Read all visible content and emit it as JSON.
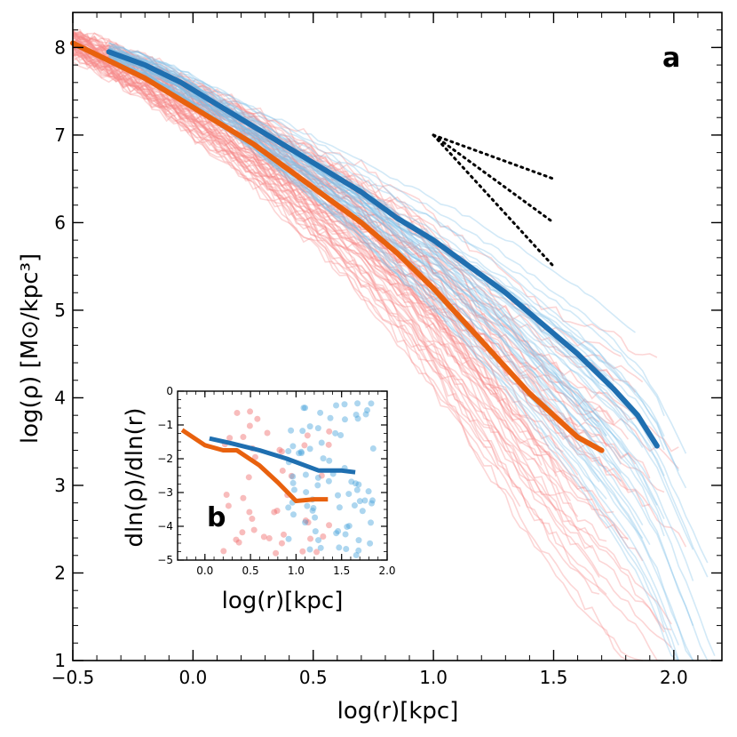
{
  "chart_data": [
    {
      "panel": "a",
      "type": "line",
      "title": "",
      "xlabel": "log(r)[kpc]",
      "ylabel": "log(ρ) [M⊙/kpc³]",
      "xlim": [
        -0.5,
        2.2
      ],
      "ylim": [
        1,
        8.4
      ],
      "xticks": [
        -0.5,
        0.0,
        0.5,
        1.0,
        1.5,
        2.0
      ],
      "xtick_labels": [
        "−0.5",
        "0.0",
        "0.5",
        "1.0",
        "1.5",
        "2.0"
      ],
      "yticks": [
        1,
        2,
        3,
        4,
        5,
        6,
        7,
        8
      ],
      "ytick_labels": [
        "1",
        "2",
        "3",
        "4",
        "5",
        "6",
        "7",
        "8"
      ],
      "series": [
        {
          "name": "blue-median",
          "color": "#1f6fb0",
          "x": [
            -0.35,
            -0.2,
            -0.05,
            0.1,
            0.25,
            0.4,
            0.55,
            0.7,
            0.85,
            1.0,
            1.15,
            1.3,
            1.45,
            1.6,
            1.75,
            1.85,
            1.93
          ],
          "y": [
            7.95,
            7.8,
            7.6,
            7.35,
            7.1,
            6.85,
            6.6,
            6.35,
            6.05,
            5.8,
            5.5,
            5.2,
            4.85,
            4.5,
            4.1,
            3.8,
            3.45
          ]
        },
        {
          "name": "orange-median",
          "color": "#e8610e",
          "x": [
            -0.5,
            -0.35,
            -0.2,
            -0.05,
            0.1,
            0.25,
            0.4,
            0.55,
            0.7,
            0.85,
            1.0,
            1.1,
            1.2,
            1.3,
            1.4,
            1.5,
            1.6,
            1.7
          ],
          "y": [
            8.05,
            7.85,
            7.65,
            7.4,
            7.15,
            6.9,
            6.6,
            6.3,
            6.0,
            5.65,
            5.25,
            4.95,
            4.65,
            4.35,
            4.05,
            3.8,
            3.55,
            3.4
          ]
        }
      ],
      "reference_slopes": [
        {
          "x": [
            1.0,
            1.5
          ],
          "y": [
            7.0,
            6.5
          ]
        },
        {
          "x": [
            1.0,
            1.5
          ],
          "y": [
            7.0,
            6.0
          ]
        },
        {
          "x": [
            1.0,
            1.5
          ],
          "y": [
            7.0,
            5.5
          ]
        }
      ],
      "annotation": "a"
    },
    {
      "panel": "b",
      "type": "scatter",
      "xlabel": "log(r)[kpc]",
      "ylabel": "dln(ρ)/dln(r)",
      "xlim": [
        -0.3,
        2.0
      ],
      "ylim": [
        -5,
        0
      ],
      "xticks": [
        0.0,
        0.5,
        1.0,
        1.5,
        2.0
      ],
      "xtick_labels": [
        "0.0",
        "0.5",
        "1.0",
        "1.5",
        "2.0"
      ],
      "yticks": [
        0,
        -1,
        -2,
        -3,
        -4,
        -5
      ],
      "ytick_labels": [
        "0",
        "−1",
        "−2",
        "−3",
        "−4",
        "−5"
      ],
      "series": [
        {
          "name": "blue-slope",
          "color": "#1f6fb0",
          "x": [
            0.05,
            0.3,
            0.6,
            0.9,
            1.25,
            1.5,
            1.65
          ],
          "y": [
            -1.4,
            -1.55,
            -1.75,
            -2.0,
            -2.35,
            -2.35,
            -2.4
          ]
        },
        {
          "name": "orange-slope",
          "color": "#e8610e",
          "x": [
            -0.25,
            0.0,
            0.2,
            0.35,
            0.6,
            0.8,
            1.0,
            1.2,
            1.35
          ],
          "y": [
            -1.15,
            -1.6,
            -1.75,
            -1.75,
            -2.2,
            -2.7,
            -3.25,
            -3.2,
            -3.2
          ]
        }
      ],
      "annotation": "b"
    }
  ]
}
